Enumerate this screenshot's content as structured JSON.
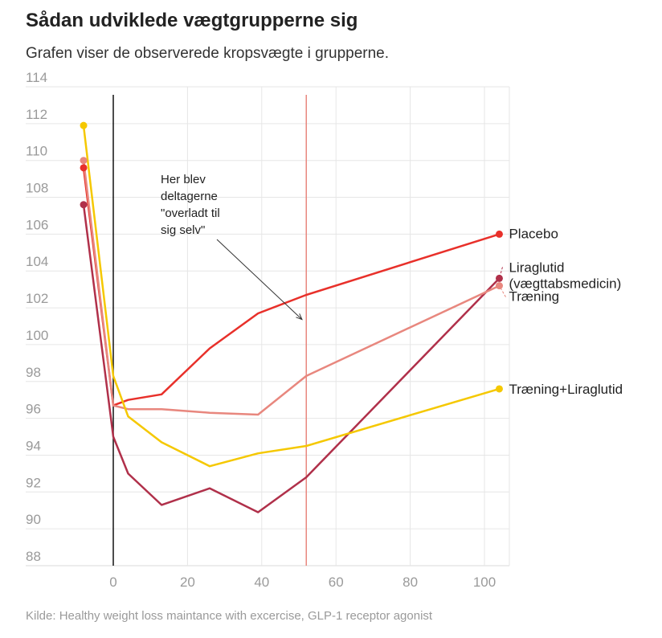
{
  "header": {
    "title": "Sådan udviklede vægtgrupperne sig",
    "subtitle": "Grafen viser de observerede kropsvægte i grupperne."
  },
  "footer": {
    "source": "Kilde: Healthy weight loss maintance with excercise, GLP-1 receptor agonist"
  },
  "chart_data": {
    "type": "line",
    "title": "Sådan udviklede vægtgrupperne sig",
    "subtitle": "Grafen viser de observerede kropsvægte i grupperne.",
    "xlabel": "",
    "ylabel": "",
    "xlim": [
      -10,
      106
    ],
    "ylim": [
      88,
      114
    ],
    "x_ticks": [
      0,
      20,
      40,
      60,
      80,
      100
    ],
    "y_ticks": [
      88,
      90,
      92,
      94,
      96,
      98,
      100,
      102,
      104,
      106,
      108,
      110,
      112,
      114
    ],
    "grid": true,
    "zero_line": 0,
    "reference_line_x": 52,
    "annotation": {
      "lines": [
        "Her blev",
        "deltagerne",
        "\"overladt til",
        "sig selv\""
      ],
      "arrow_to": [
        51.5,
        102.5
      ]
    },
    "series": [
      {
        "name": "Placebo",
        "label_lines": [
          "Placebo"
        ],
        "color": "#e8302a",
        "x": [
          -8,
          0,
          4,
          13,
          26,
          39,
          52,
          104
        ],
        "y": [
          109.6,
          96.7,
          97.0,
          97.3,
          99.8,
          101.7,
          102.7,
          106.0
        ]
      },
      {
        "name": "Liraglutid (vægttabsmedicin)",
        "label_lines": [
          "Liraglutid",
          "(vægttabsmedicin)"
        ],
        "color": "#b0304a",
        "x": [
          -8,
          0,
          4,
          13,
          26,
          39,
          52,
          104
        ],
        "y": [
          107.6,
          95.0,
          93.0,
          91.3,
          92.2,
          90.9,
          92.8,
          103.6
        ]
      },
      {
        "name": "Træning",
        "label_lines": [
          "Træning"
        ],
        "color": "#e8877e",
        "x": [
          -8,
          0,
          4,
          13,
          26,
          39,
          52,
          104
        ],
        "y": [
          110.0,
          96.7,
          96.5,
          96.5,
          96.3,
          96.2,
          98.3,
          103.2
        ]
      },
      {
        "name": "Træning+Liraglutid",
        "label_lines": [
          "Træning+Liraglutid"
        ],
        "color": "#f5c800",
        "x": [
          -8,
          0,
          4,
          13,
          26,
          39,
          52,
          104
        ],
        "y": [
          111.9,
          98.3,
          96.1,
          94.7,
          93.4,
          94.1,
          94.5,
          97.6
        ]
      }
    ]
  }
}
